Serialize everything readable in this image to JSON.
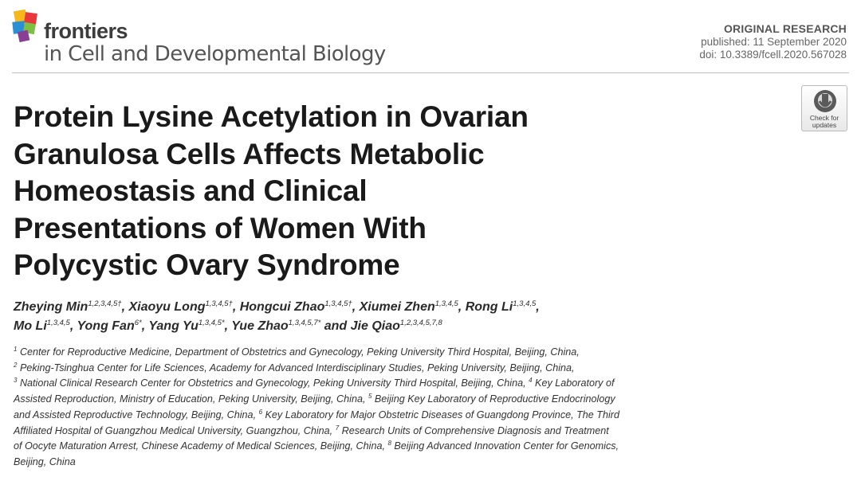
{
  "journal": {
    "name": "frontiers",
    "subtitle": "in Cell and Developmental Biology"
  },
  "meta": {
    "article_type": "ORIGINAL RESEARCH",
    "published": "published: 11 September 2020",
    "doi": "doi: 10.3389/fcell.2020.567028"
  },
  "badge": {
    "line1": "Check for",
    "line2": "updates",
    "icon": "check-for-updates-icon"
  },
  "title": {
    "line1": "Protein Lysine Acetylation in Ovarian",
    "line2": "Granulosa Cells Affects Metabolic",
    "line3": "Homeostasis and Clinical",
    "line4": "Presentations of Women With",
    "line5": "Polycystic Ovary Syndrome"
  },
  "authors": [
    {
      "name": "Zheying Min",
      "sup": "1,2,3,4,5†",
      "sep": ", "
    },
    {
      "name": "Xiaoyu Long",
      "sup": "1,3,4,5†",
      "sep": ", "
    },
    {
      "name": "Hongcui Zhao",
      "sup": "1,3,4,5†",
      "sep": ", "
    },
    {
      "name": "Xiumei Zhen",
      "sup": "1,3,4,5",
      "sep": ", "
    },
    {
      "name": "Rong Li",
      "sup": "1,3,4,5",
      "sep": ","
    },
    {
      "name": "Mo Li",
      "sup": "1,3,4,5",
      "sep": ", "
    },
    {
      "name": "Yong Fan",
      "sup": "6*",
      "sep": ", "
    },
    {
      "name": "Yang Yu",
      "sup": "1,3,4,5*",
      "sep": ", "
    },
    {
      "name": "Yue Zhao",
      "sup": "1,3,4,5,7*",
      "sep": " and "
    },
    {
      "name": "Jie Qiao",
      "sup": "1,2,3,4,5,7,8",
      "sep": ""
    }
  ],
  "affiliations": {
    "a1": "Center for Reproductive Medicine, Department of Obstetrics and Gynecology, Peking University Third Hospital, Beijing, China, ",
    "a2": "Peking-Tsinghua Center for Life Sciences, Academy for Advanced Interdisciplinary Studies, Peking University, Beijing, China, ",
    "a3": "National Clinical Research Center for Obstetrics and Gynecology, Peking University Third Hospital, Beijing, China, ",
    "a4": "Key Laboratory of Assisted Reproduction, Ministry of Education, Peking University, Beijing, China, ",
    "a5": "Beijing Key Laboratory of Reproductive Endocrinology and Assisted Reproductive Technology, Beijing, China, ",
    "a6": "Key Laboratory for Major Obstetric Diseases of Guangdong Province, The Third Affiliated Hospital of Guangzhou Medical University, Guangzhou, China, ",
    "a7": "Research Units of Comprehensive Diagnosis and Treatment of Oocyte Maturation Arrest, Chinese Academy of Medical Sciences, Beijing, China, ",
    "a8": "Beijing Advanced Innovation Center for Genomics, Beijing, China"
  },
  "colors": {
    "logo_yellow": "#f6b81c",
    "logo_red": "#e8383d",
    "logo_blue": "#2a8fd4",
    "logo_green": "#7cc142",
    "logo_purple": "#8a3f96"
  }
}
